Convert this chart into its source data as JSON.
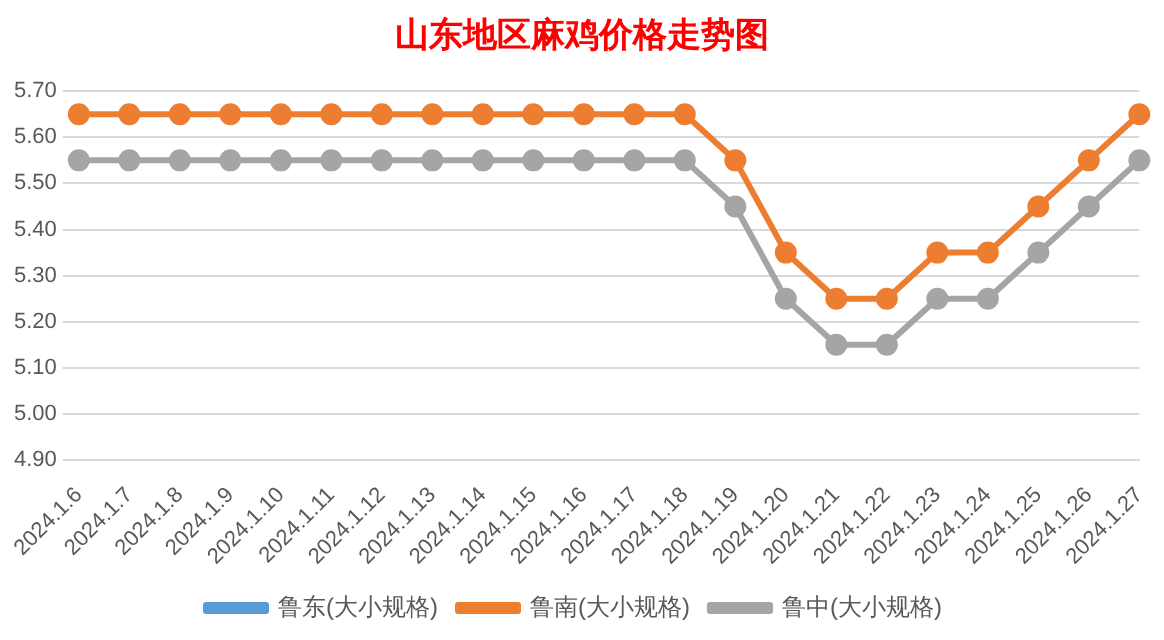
{
  "chart_data": {
    "type": "line",
    "title": "山东地区麻鸡价格走势图",
    "categories": [
      "2024.1.6",
      "2024.1.7",
      "2024.1.8",
      "2024.1.9",
      "2024.1.10",
      "2024.1.11",
      "2024.1.12",
      "2024.1.13",
      "2024.1.14",
      "2024.1.15",
      "2024.1.16",
      "2024.1.17",
      "2024.1.18",
      "2024.1.19",
      "2024.1.20",
      "2024.1.21",
      "2024.1.22",
      "2024.1.23",
      "2024.1.24",
      "2024.1.25",
      "2024.1.26",
      "2024.1.27"
    ],
    "series": [
      {
        "name": "鲁东(大小规格)",
        "color": "#5b9bd5",
        "values": [
          null,
          null,
          null,
          null,
          null,
          null,
          null,
          null,
          null,
          null,
          null,
          null,
          null,
          null,
          null,
          null,
          null,
          null,
          null,
          null,
          null,
          null
        ]
      },
      {
        "name": "鲁南(大小规格)",
        "color": "#ed7d31",
        "values": [
          5.65,
          5.65,
          5.65,
          5.65,
          5.65,
          5.65,
          5.65,
          5.65,
          5.65,
          5.65,
          5.65,
          5.65,
          5.65,
          5.55,
          5.35,
          5.25,
          5.25,
          5.35,
          5.35,
          5.45,
          5.55,
          5.65
        ]
      },
      {
        "name": "鲁中(大小规格)",
        "color": "#a5a5a5",
        "values": [
          5.55,
          5.55,
          5.55,
          5.55,
          5.55,
          5.55,
          5.55,
          5.55,
          5.55,
          5.55,
          5.55,
          5.55,
          5.55,
          5.45,
          5.25,
          5.15,
          5.15,
          5.25,
          5.25,
          5.35,
          5.45,
          5.55
        ]
      }
    ],
    "ylim": [
      4.9,
      5.7
    ],
    "yticks": [
      {
        "value": 4.9,
        "label": "4.90"
      },
      {
        "value": 5.0,
        "label": "5.00"
      },
      {
        "value": 5.1,
        "label": "5.10"
      },
      {
        "value": 5.2,
        "label": "5.20"
      },
      {
        "value": 5.3,
        "label": "5.30"
      },
      {
        "value": 5.4,
        "label": "5.40"
      },
      {
        "value": 5.5,
        "label": "5.50"
      },
      {
        "value": 5.6,
        "label": "5.60"
      },
      {
        "value": 5.7,
        "label": "5.70"
      }
    ],
    "grid": "y",
    "legend": "bottom",
    "marker": "circle",
    "line_style": "solid"
  }
}
